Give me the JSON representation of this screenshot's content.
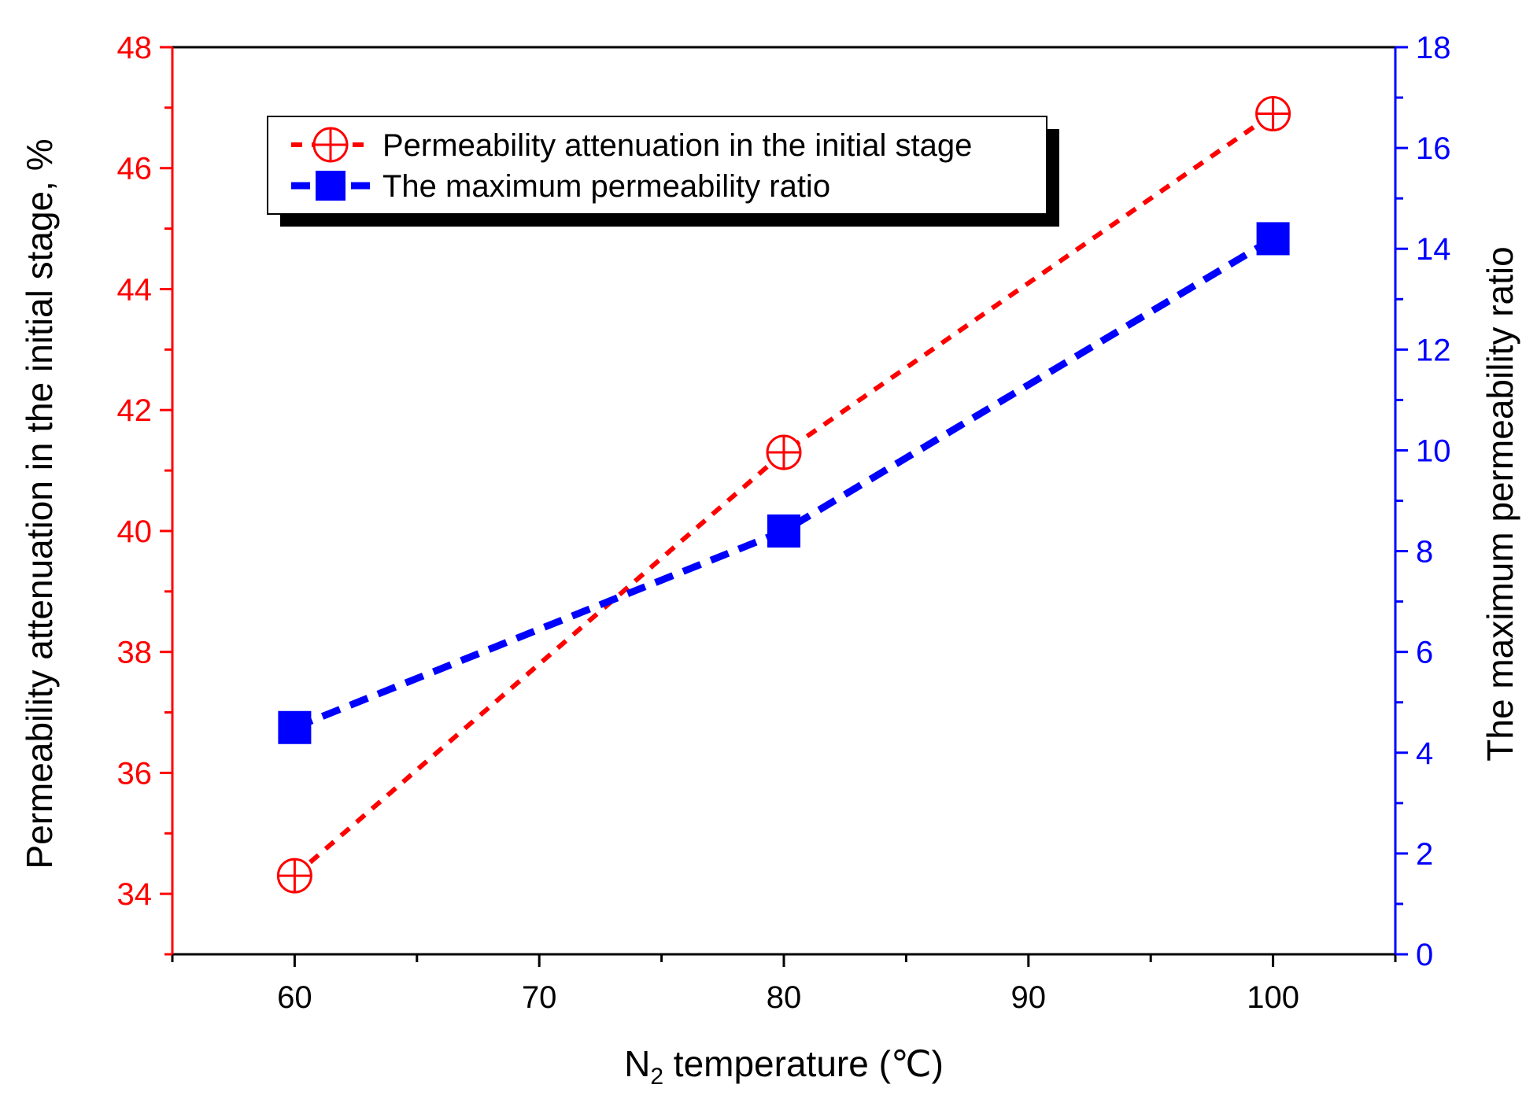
{
  "chart_data": {
    "type": "line",
    "title": "",
    "xlabel": {
      "main": "N",
      "sub": "2",
      "rest": " temperature (℃)"
    },
    "ylabel_left": "Permeability attenuation in the initial stage, %",
    "ylabel_right": "The maximum permeability ratio",
    "x": [
      60,
      80,
      100
    ],
    "xlim": [
      55,
      105
    ],
    "x_ticks": [
      60,
      70,
      80,
      90,
      100
    ],
    "ylim_left": [
      33,
      48
    ],
    "y_ticks_left": [
      34,
      36,
      38,
      40,
      42,
      44,
      46,
      48
    ],
    "ylim_right": [
      0,
      18
    ],
    "y_ticks_right": [
      0,
      2,
      4,
      6,
      8,
      10,
      12,
      14,
      16,
      18
    ],
    "grid": false,
    "legend_position": "top-left",
    "series": [
      {
        "name": "Permeability attenuation in the initial stage",
        "axis": "left",
        "values": [
          34.3,
          41.3,
          46.9
        ],
        "color": "#ff0000",
        "marker": "circle-plus",
        "line": "dashed"
      },
      {
        "name": "The maximum permeability ratio",
        "axis": "right",
        "values": [
          4.5,
          8.4,
          14.2
        ],
        "color": "#0000ff",
        "marker": "square",
        "line": "dashed"
      }
    ],
    "axis_colors": {
      "left": "#ff0000",
      "right": "#0000ff",
      "bottom": "#000000"
    }
  }
}
